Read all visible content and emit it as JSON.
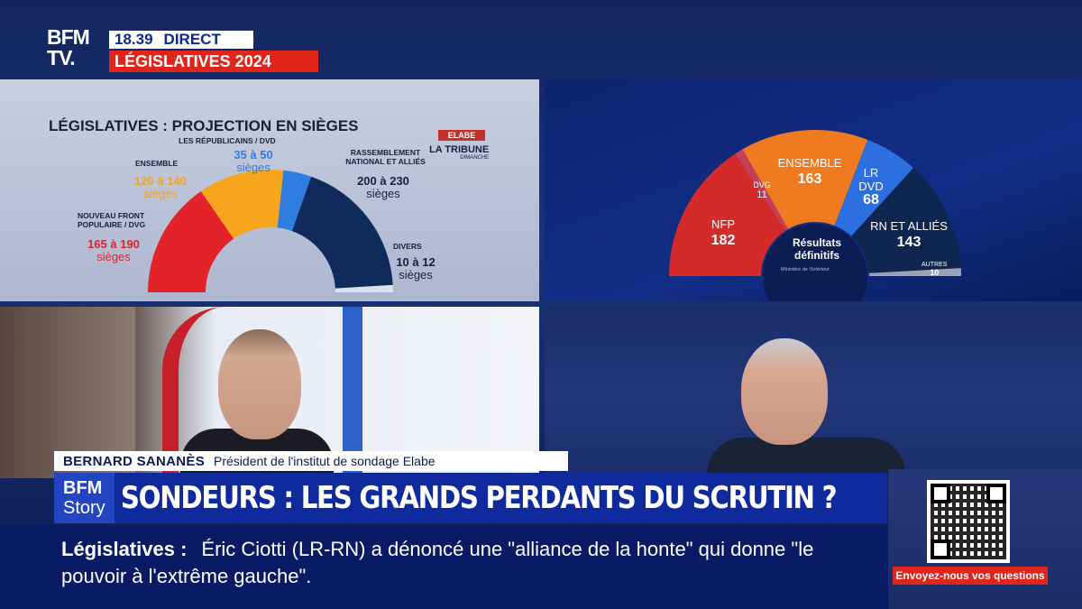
{
  "branding": {
    "logo_line1": "BFM",
    "logo_line2": "TV.",
    "time": "18.39",
    "live": "DIRECT",
    "topic": "LÉGISLATIVES 2024"
  },
  "projection_panel": {
    "title": "LÉGISLATIVES : PROJECTION EN SIÈGES",
    "pollster": "ELABE",
    "partner": "LA TRIBUNE",
    "partner_sub": "DIMANCHE",
    "groups": [
      {
        "label": "NOUVEAU FRONT POPULAIRE / DVG",
        "range": "165 à 190",
        "unit": "sièges",
        "color": "#e2232a",
        "mid": 177.5
      },
      {
        "label": "ENSEMBLE",
        "range": "120 à 140",
        "unit": "sièges",
        "color": "#f7a51d",
        "mid": 130
      },
      {
        "label": "LES RÉPUBLICAINS / DVD",
        "range": "35 à 50",
        "unit": "sièges",
        "color": "#2f7de0",
        "mid": 42.5
      },
      {
        "label": "RASSEMBLEMENT NATIONAL ET ALLIÉS",
        "range": "200 à 230",
        "unit": "sièges",
        "color": "#102a5c",
        "mid": 215
      },
      {
        "label": "DIVERS",
        "range": "10 à 12",
        "unit": "sièges",
        "color": "#dde2ec",
        "mid": 11
      }
    ]
  },
  "results_panel": {
    "center_title": "Résultats définitifs",
    "source": "Ministère de l'Intérieur",
    "groups": [
      {
        "name": "NFP",
        "seats": "182",
        "value": 182,
        "color": "#d42a2a"
      },
      {
        "name": "DVG",
        "seats": "11",
        "value": 11,
        "color": "#c4405a"
      },
      {
        "name": "ENSEMBLE",
        "seats": "163",
        "value": 163,
        "color": "#ef7a1f"
      },
      {
        "name": "LR DVD",
        "seats": "68",
        "value": 68,
        "color": "#2c6fe0"
      },
      {
        "name": "RN ET ALLIÉS",
        "seats": "143",
        "value": 143,
        "color": "#0f2750"
      },
      {
        "name": "AUTRES",
        "seats": "10",
        "value": 10,
        "color": "#9aa3b5"
      }
    ]
  },
  "guest": {
    "name": "BERNARD SANANÈS",
    "role": "Président de l'institut de sondage Elabe"
  },
  "headline": {
    "program_line1": "BFM",
    "program_line2": "Story",
    "text": "SONDEURS : LES GRANDS PERDANTS DU SCRUTIN ?"
  },
  "ticker": {
    "category": "Législatives :",
    "text": "Éric Ciotti (LR-RN) a dénoncé une \"alliance de la honte\" qui donne \"le pouvoir à l'extrême gauche\"."
  },
  "cta": {
    "label": "Envoyez-nous vos questions"
  }
}
